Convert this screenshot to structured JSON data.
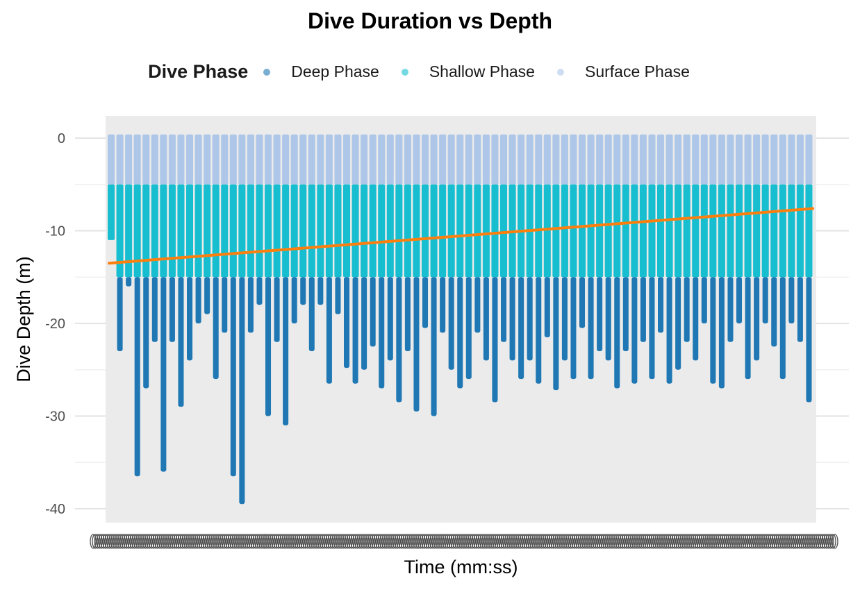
{
  "chart_data": {
    "type": "scatter",
    "title": "Dive Duration vs Depth",
    "xlabel": "Time (mm:ss)",
    "ylabel": "Dive Depth (m)",
    "ylim": [
      -41.5,
      2.4
    ],
    "yticks": [
      0,
      -10,
      -20,
      -30,
      -40
    ],
    "grid": true,
    "legend_position": "top",
    "legend_title": "Dive Phase",
    "series": [
      {
        "name": "Deep Phase",
        "color": "#1f78b4",
        "depth_range": [
          -39.5,
          -15
        ]
      },
      {
        "name": "Shallow Phase",
        "color": "#17becf",
        "depth_range": [
          -15,
          -5
        ]
      },
      {
        "name": "Surface Phase",
        "color": "#aec7e8",
        "depth_range": [
          -5,
          0.4
        ]
      }
    ],
    "trend_line": {
      "color": "#ff7f0e",
      "start_y": -13.5,
      "end_y": -7.6
    },
    "dive_minima": [
      -11,
      -23,
      -16,
      -36.5,
      -27,
      -22,
      -36,
      -22,
      -29,
      -24,
      -20,
      -19,
      -26,
      -21,
      -36.5,
      -39.5,
      -21,
      -18,
      -30,
      -22,
      -31,
      -20,
      -18,
      -23,
      -18,
      -26.5,
      -19,
      -24.8,
      -26.5,
      -25,
      -22.5,
      -27,
      -24,
      -28.5,
      -23,
      -29.5,
      -20.5,
      -30,
      -21,
      -25,
      -27,
      -26,
      -21,
      -24,
      -28.5,
      -22,
      -24,
      -26,
      -24,
      -26.5,
      -21.5,
      -27.2,
      -24,
      -26,
      -20.5,
      -26,
      -23,
      -24,
      -27,
      -23,
      -26.5,
      -22,
      -26,
      -21,
      -26.5,
      -25,
      -22,
      -24,
      -20,
      -26.5,
      -27,
      -22,
      -20,
      -26,
      -24,
      -20,
      -22.5,
      -26,
      -20,
      -22,
      -28.5
    ]
  }
}
